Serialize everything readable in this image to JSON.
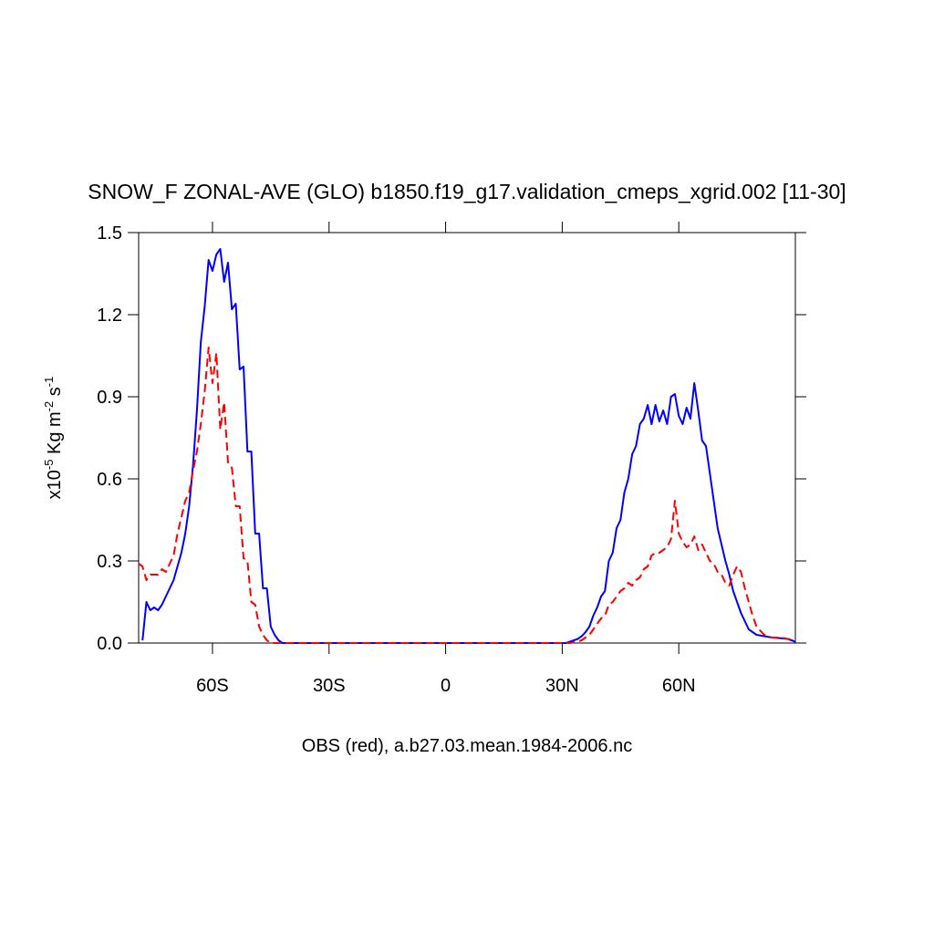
{
  "chart_data": {
    "type": "line",
    "title": "SNOW_F ZONAL-AVE (GLO) b1850.f19_g17.validation_cmeps_xgrid.002 [11-30]",
    "xlabel": "OBS (red), a.b27.03.mean.1984-2006.nc",
    "ylabel": [
      "x10",
      "-5",
      " Kg m",
      "-2",
      " s",
      "-1"
    ],
    "xlim": [
      -79,
      90
    ],
    "ylim": [
      0,
      1.5
    ],
    "xticks": [
      {
        "value": -60,
        "label": "60S"
      },
      {
        "value": -30,
        "label": "30S"
      },
      0,
      {
        "value": 30,
        "label": "30N"
      },
      {
        "value": 60,
        "label": "60N"
      }
    ],
    "yticks": [
      {
        "value": 0,
        "label": "0.0"
      },
      0.3,
      0.6,
      0.9,
      1.2,
      1.5
    ],
    "x": [
      -79,
      -78,
      -77,
      -76,
      -75,
      -74,
      -73,
      -72,
      -71,
      -70,
      -69,
      -68,
      -67,
      -66,
      -65,
      -64,
      -63,
      -62,
      -61,
      -60,
      -59,
      -58,
      -57,
      -56,
      -55,
      -54,
      -53,
      -52,
      -51,
      -50,
      -49,
      -48,
      -47,
      -46,
      -45,
      -44,
      -43,
      -42,
      0,
      30,
      31,
      32,
      33,
      34,
      35,
      36,
      37,
      38,
      39,
      40,
      41,
      42,
      43,
      44,
      45,
      46,
      47,
      48,
      49,
      50,
      51,
      52,
      53,
      54,
      55,
      56,
      57,
      58,
      59,
      60,
      61,
      62,
      63,
      64,
      65,
      66,
      67,
      68,
      69,
      70,
      71,
      72,
      73,
      74,
      75,
      76,
      77,
      78,
      79,
      80,
      82,
      84,
      86,
      88,
      90
    ],
    "series": [
      {
        "color": "#0000ff",
        "line_style": "solid",
        "values": [
          null,
          0.01,
          0.15,
          0.12,
          0.13,
          0.12,
          0.14,
          0.17,
          0.2,
          0.23,
          0.28,
          0.33,
          0.4,
          0.5,
          0.65,
          0.85,
          1.1,
          1.23,
          1.4,
          1.36,
          1.42,
          1.44,
          1.32,
          1.39,
          1.22,
          1.24,
          1.0,
          1.01,
          0.7,
          0.7,
          0.4,
          0.4,
          0.2,
          0.2,
          0.06,
          0.03,
          0.01,
          0.0,
          0,
          0,
          0,
          0.005,
          0.01,
          0.015,
          0.025,
          0.04,
          0.06,
          0.1,
          0.13,
          0.17,
          0.19,
          0.3,
          0.33,
          0.42,
          0.45,
          0.55,
          0.6,
          0.69,
          0.72,
          0.8,
          0.82,
          0.87,
          0.8,
          0.87,
          0.81,
          0.85,
          0.8,
          0.9,
          0.91,
          0.83,
          0.8,
          0.86,
          0.82,
          0.95,
          0.85,
          0.74,
          0.72,
          0.62,
          0.52,
          0.42,
          0.36,
          0.3,
          0.25,
          0.19,
          0.15,
          0.11,
          0.08,
          0.05,
          0.04,
          0.03,
          0.025,
          0.02,
          0.018,
          0.015,
          0.005
        ]
      },
      {
        "color": "#ff0000",
        "line_style": "dashed",
        "values": [
          0.29,
          0.28,
          0.23,
          0.25,
          0.25,
          0.25,
          0.27,
          0.26,
          0.29,
          0.32,
          0.4,
          0.46,
          0.52,
          0.55,
          0.63,
          0.7,
          0.8,
          0.92,
          1.08,
          0.95,
          1.06,
          0.78,
          0.88,
          0.66,
          0.64,
          0.5,
          0.5,
          0.31,
          0.3,
          0.15,
          0.14,
          0.06,
          0.03,
          0.01,
          0,
          0,
          0,
          0,
          0,
          0,
          0,
          0,
          0.003,
          0.005,
          0.01,
          0.02,
          0.03,
          0.05,
          0.07,
          0.09,
          0.1,
          0.14,
          0.15,
          0.17,
          0.19,
          0.2,
          0.22,
          0.21,
          0.23,
          0.24,
          0.27,
          0.28,
          0.32,
          0.33,
          0.33,
          0.34,
          0.35,
          0.38,
          0.52,
          0.4,
          0.37,
          0.35,
          0.36,
          0.39,
          0.34,
          0.36,
          0.33,
          0.3,
          0.29,
          0.26,
          0.25,
          0.22,
          0.21,
          0.25,
          0.28,
          0.26,
          0.2,
          0.15,
          0.1,
          0.06,
          0.03,
          0.02,
          0.02,
          0.015,
          0.01
        ]
      }
    ]
  }
}
